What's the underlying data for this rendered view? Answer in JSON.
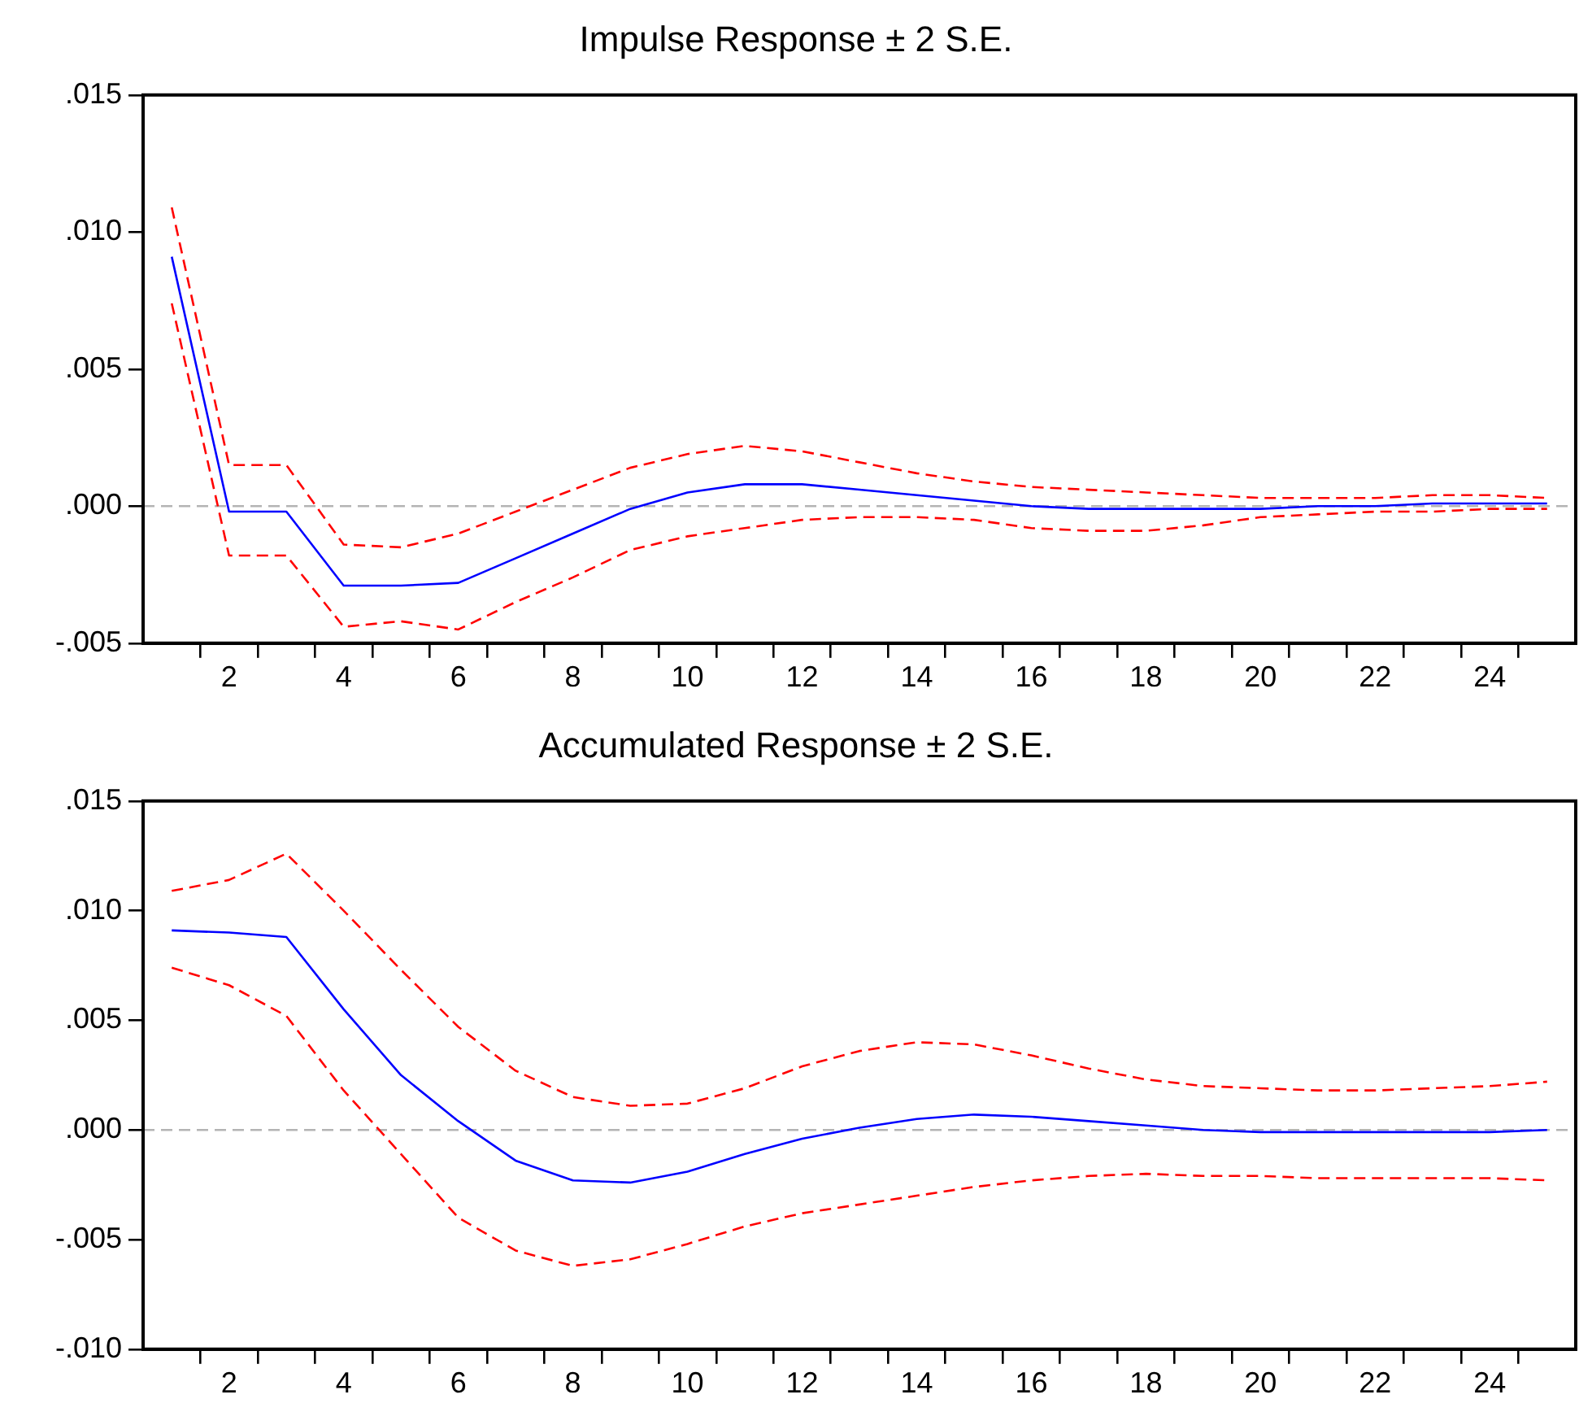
{
  "chart_data": [
    {
      "type": "line",
      "title": "Impulse Response ± 2 S.E.",
      "marker": "none",
      "x": [
        1,
        2,
        3,
        4,
        5,
        6,
        7,
        8,
        9,
        10,
        11,
        12,
        13,
        14,
        15,
        16,
        17,
        18,
        19,
        20,
        21,
        22,
        23,
        24,
        25
      ],
      "xlim": [
        0.5,
        25.5
      ],
      "xticks": [
        {
          "value": 1.5,
          "label": null
        },
        2,
        {
          "value": 2.5,
          "label": null
        },
        {
          "value": 3.5,
          "label": null
        },
        4,
        {
          "value": 4.5,
          "label": null
        },
        {
          "value": 5.5,
          "label": null
        },
        6,
        {
          "value": 6.5,
          "label": null
        },
        {
          "value": 7.5,
          "label": null
        },
        8,
        {
          "value": 8.5,
          "label": null
        },
        {
          "value": 9.5,
          "label": null
        },
        10,
        {
          "value": 10.5,
          "label": null
        },
        {
          "value": 11.5,
          "label": null
        },
        12,
        {
          "value": 12.5,
          "label": null
        },
        {
          "value": 13.5,
          "label": null
        },
        14,
        {
          "value": 14.5,
          "label": null
        },
        {
          "value": 15.5,
          "label": null
        },
        16,
        {
          "value": 16.5,
          "label": null
        },
        {
          "value": 17.5,
          "label": null
        },
        18,
        {
          "value": 18.5,
          "label": null
        },
        {
          "value": 19.5,
          "label": null
        },
        20,
        {
          "value": 20.5,
          "label": null
        },
        {
          "value": 21.5,
          "label": null
        },
        22,
        {
          "value": 22.5,
          "label": null
        },
        {
          "value": 23.5,
          "label": null
        },
        24,
        {
          "value": 24.5,
          "label": null
        }
      ],
      "ylim": [
        -0.005,
        0.015
      ],
      "yticks": [
        {
          "value": -0.005,
          "label": "-.005"
        },
        {
          "value": 0,
          "label": ".000"
        },
        {
          "value": 0.005,
          "label": ".005"
        },
        {
          "value": 0.01,
          "label": ".010"
        },
        {
          "value": 0.015,
          "label": ".015"
        }
      ],
      "ref_lines": [
        {
          "axis": "y",
          "value": 0,
          "color": "#b4b4b4",
          "line_style": "dashed"
        }
      ],
      "series": [
        {
          "color": "#0000ff",
          "line_style": "solid",
          "values": [
            0.0091,
            -0.0002,
            -0.0002,
            -0.0029,
            -0.0029,
            -0.0028,
            -0.0019,
            -0.001,
            -0.0001,
            0.0005,
            0.0008,
            0.0008,
            0.0006,
            0.0004,
            0.0002,
            0.0,
            -0.0001,
            -0.0001,
            -0.0001,
            -0.0001,
            0.0,
            0.0,
            0.0001,
            0.0001,
            0.0001
          ]
        },
        {
          "color": "#ff0000",
          "line_style": "dashed",
          "values": [
            0.0109,
            0.0015,
            0.0015,
            -0.0014,
            -0.0015,
            -0.001,
            -0.0002,
            0.0006,
            0.0014,
            0.0019,
            0.0022,
            0.002,
            0.0016,
            0.0012,
            0.0009,
            0.0007,
            0.0006,
            0.0005,
            0.0004,
            0.0003,
            0.0003,
            0.0003,
            0.0004,
            0.0004,
            0.0003
          ]
        },
        {
          "color": "#ff0000",
          "line_style": "dashed",
          "values": [
            0.0074,
            -0.0018,
            -0.0018,
            -0.0044,
            -0.0042,
            -0.0045,
            -0.0035,
            -0.0026,
            -0.0016,
            -0.0011,
            -0.0008,
            -0.0005,
            -0.0004,
            -0.0004,
            -0.0005,
            -0.0008,
            -0.0009,
            -0.0009,
            -0.0007,
            -0.0004,
            -0.0003,
            -0.0002,
            -0.0002,
            -0.0001,
            -0.0001
          ]
        }
      ]
    },
    {
      "type": "line",
      "title": "Accumulated Response ± 2 S.E.",
      "marker": "none",
      "x": [
        1,
        2,
        3,
        4,
        5,
        6,
        7,
        8,
        9,
        10,
        11,
        12,
        13,
        14,
        15,
        16,
        17,
        18,
        19,
        20,
        21,
        22,
        23,
        24,
        25
      ],
      "xlim": [
        0.5,
        25.5
      ],
      "xticks": [
        {
          "value": 1.5,
          "label": null
        },
        2,
        {
          "value": 2.5,
          "label": null
        },
        {
          "value": 3.5,
          "label": null
        },
        4,
        {
          "value": 4.5,
          "label": null
        },
        {
          "value": 5.5,
          "label": null
        },
        6,
        {
          "value": 6.5,
          "label": null
        },
        {
          "value": 7.5,
          "label": null
        },
        8,
        {
          "value": 8.5,
          "label": null
        },
        {
          "value": 9.5,
          "label": null
        },
        10,
        {
          "value": 10.5,
          "label": null
        },
        {
          "value": 11.5,
          "label": null
        },
        12,
        {
          "value": 12.5,
          "label": null
        },
        {
          "value": 13.5,
          "label": null
        },
        14,
        {
          "value": 14.5,
          "label": null
        },
        {
          "value": 15.5,
          "label": null
        },
        16,
        {
          "value": 16.5,
          "label": null
        },
        {
          "value": 17.5,
          "label": null
        },
        18,
        {
          "value": 18.5,
          "label": null
        },
        {
          "value": 19.5,
          "label": null
        },
        20,
        {
          "value": 20.5,
          "label": null
        },
        {
          "value": 21.5,
          "label": null
        },
        22,
        {
          "value": 22.5,
          "label": null
        },
        {
          "value": 23.5,
          "label": null
        },
        24,
        {
          "value": 24.5,
          "label": null
        }
      ],
      "ylim": [
        -0.01,
        0.015
      ],
      "yticks": [
        {
          "value": -0.01,
          "label": "-.010"
        },
        {
          "value": -0.005,
          "label": "-.005"
        },
        {
          "value": 0,
          "label": ".000"
        },
        {
          "value": 0.005,
          "label": ".005"
        },
        {
          "value": 0.01,
          "label": ".010"
        },
        {
          "value": 0.015,
          "label": ".015"
        }
      ],
      "ref_lines": [
        {
          "axis": "y",
          "value": 0,
          "color": "#b4b4b4",
          "line_style": "dashed"
        }
      ],
      "series": [
        {
          "color": "#0000ff",
          "line_style": "solid",
          "values": [
            0.0091,
            0.009,
            0.0088,
            0.0055,
            0.0025,
            0.0004,
            -0.0014,
            -0.0023,
            -0.0024,
            -0.0019,
            -0.0011,
            -0.0004,
            0.0001,
            0.0005,
            0.0007,
            0.0006,
            0.0004,
            0.0002,
            0.0,
            -0.0001,
            -0.0001,
            -0.0001,
            -0.0001,
            -0.0001,
            0.0
          ]
        },
        {
          "color": "#ff0000",
          "line_style": "dashed",
          "values": [
            0.0109,
            0.0114,
            0.0126,
            0.01,
            0.0073,
            0.0047,
            0.0027,
            0.0015,
            0.0011,
            0.0012,
            0.0019,
            0.0029,
            0.0036,
            0.004,
            0.0039,
            0.0034,
            0.0028,
            0.0023,
            0.002,
            0.0019,
            0.0018,
            0.0018,
            0.0019,
            0.002,
            0.0022
          ]
        },
        {
          "color": "#ff0000",
          "line_style": "dashed",
          "values": [
            0.0074,
            0.0066,
            0.0052,
            0.0018,
            -0.0011,
            -0.004,
            -0.0055,
            -0.0062,
            -0.0059,
            -0.0052,
            -0.0044,
            -0.0038,
            -0.0034,
            -0.003,
            -0.0026,
            -0.0023,
            -0.0021,
            -0.002,
            -0.0021,
            -0.0021,
            -0.0022,
            -0.0022,
            -0.0022,
            -0.0022,
            -0.0023
          ]
        }
      ]
    }
  ]
}
